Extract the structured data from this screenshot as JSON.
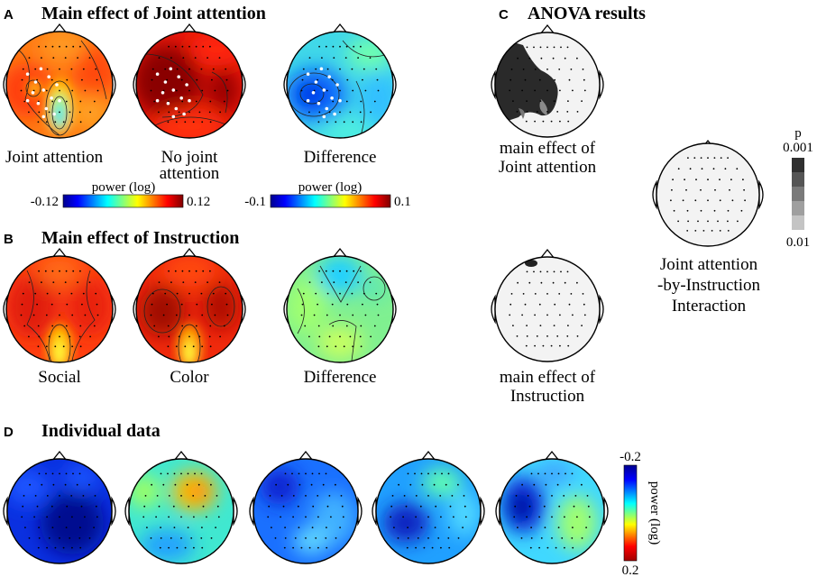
{
  "panel_A": {
    "letter": "A",
    "title": "Main effect of Joint attention",
    "labels": {
      "joint": "Joint attention",
      "nojoint_line1": "No joint",
      "nojoint_line2": "attention",
      "difference": "Difference"
    },
    "colorbar1": {
      "label": "power (log)",
      "min": "-0.12",
      "max": "0.12"
    },
    "colorbar2": {
      "label": "power (log)",
      "min": "-0.1",
      "max": "0.1"
    }
  },
  "panel_B": {
    "letter": "B",
    "title": "Main effect of Instruction",
    "labels": {
      "social": "Social",
      "color": "Color",
      "difference": "Difference"
    }
  },
  "panel_C": {
    "letter": "C",
    "title": "ANOVA results",
    "labels": {
      "ja_line1": "main effect of",
      "ja_line2": "Joint attention",
      "inst_line1": "main effect of",
      "inst_line2": "Instruction",
      "inter_line1": "Joint attention",
      "inter_line2": "-by-Instruction",
      "inter_line3": "Interaction"
    },
    "pbar": {
      "title": "p",
      "top": "0.001",
      "bottom": "0.01"
    }
  },
  "panel_D": {
    "letter": "D",
    "title": "Individual data",
    "colorbar": {
      "label": "power (log)",
      "top": "-0.2",
      "bottom": "0.2"
    }
  },
  "colors": {
    "jet": [
      "#00008f",
      "#0000ff",
      "#00ffff",
      "#ffff00",
      "#ff0000",
      "#800000"
    ],
    "jet_inverted": [
      "#00008f",
      "#0000ff",
      "#00ffff",
      "#ffff00",
      "#ff0000",
      "#a00000"
    ],
    "p_gray": [
      "#303030",
      "#555555",
      "#7a7a7a",
      "#9f9f9f",
      "#c4c4c4"
    ]
  }
}
